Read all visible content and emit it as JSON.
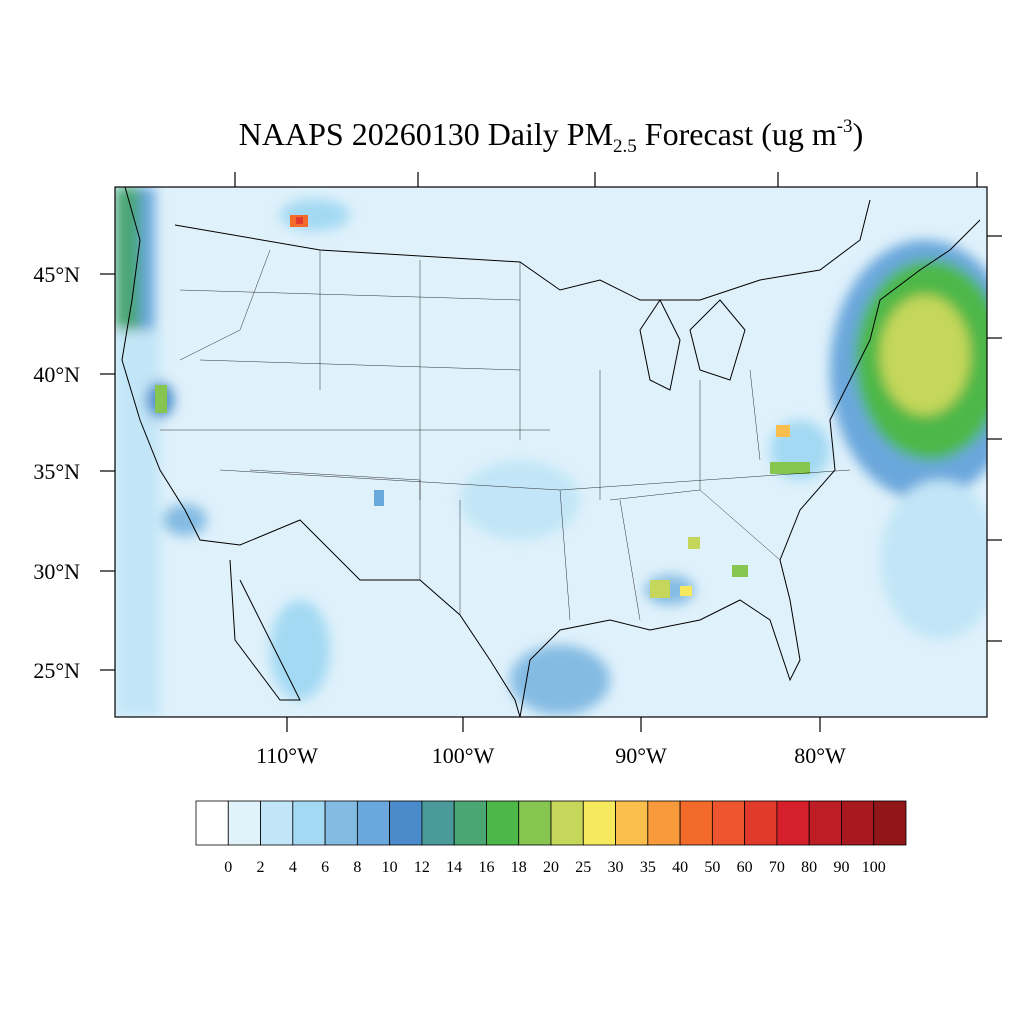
{
  "title": {
    "main": "NAAPS 20260130 Daily PM",
    "sub": "2.5",
    "mid": " Forecast (ug m",
    "sup": "-3",
    "end": ")"
  },
  "lat_labels": [
    "45°N",
    "40°N",
    "35°N",
    "30°N",
    "25°N"
  ],
  "lon_labels": [
    "110°W",
    "100°W",
    "90°W",
    "80°W"
  ],
  "colorbar": {
    "colors": [
      "#ffffff",
      "#e0f3fb",
      "#c2e6f7",
      "#a3d9f3",
      "#84bbe3",
      "#6aa7dc",
      "#4a8ccb",
      "#4a9a9a",
      "#4aa673",
      "#4db848",
      "#86c550",
      "#c4d75a",
      "#f6e95d",
      "#f9be4c",
      "#f89a3c",
      "#f36b2b",
      "#ec552e",
      "#e03a2c",
      "#d5202c",
      "#bd1d25",
      "#a8191f",
      "#91161a"
    ],
    "labels": [
      "0",
      "2",
      "4",
      "6",
      "8",
      "10",
      "12",
      "14",
      "16",
      "18",
      "20",
      "25",
      "30",
      "35",
      "40",
      "50",
      "60",
      "70",
      "80",
      "90",
      "100"
    ]
  }
}
